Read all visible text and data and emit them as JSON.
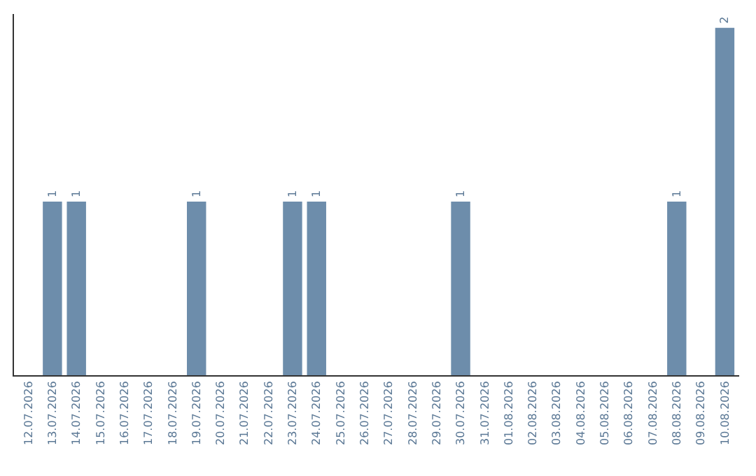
{
  "chart_data": {
    "type": "bar",
    "categories": [
      "12.07.2026",
      "13.07.2026",
      "14.07.2026",
      "15.07.2026",
      "16.07.2026",
      "17.07.2026",
      "18.07.2026",
      "19.07.2026",
      "20.07.2026",
      "21.07.2026",
      "22.07.2026",
      "23.07.2026",
      "24.07.2026",
      "25.07.2026",
      "26.07.2026",
      "27.07.2026",
      "28.07.2026",
      "29.07.2026",
      "30.07.2026",
      "31.07.2026",
      "01.08.2026",
      "02.08.2026",
      "03.08.2026",
      "04.08.2026",
      "05.08.2026",
      "06.08.2026",
      "07.08.2026",
      "08.08.2026",
      "09.08.2026",
      "10.08.2026"
    ],
    "values": [
      0,
      1,
      1,
      0,
      0,
      0,
      0,
      1,
      0,
      0,
      0,
      1,
      1,
      0,
      0,
      0,
      0,
      0,
      1,
      0,
      0,
      0,
      0,
      0,
      0,
      0,
      0,
      1,
      0,
      2
    ],
    "value_labels": [
      null,
      "1",
      "1",
      null,
      null,
      null,
      null,
      "1",
      null,
      null,
      null,
      "1",
      "1",
      null,
      null,
      null,
      null,
      null,
      "1",
      null,
      null,
      null,
      null,
      null,
      null,
      null,
      null,
      "1",
      null,
      "2"
    ],
    "color": "#6d8dab",
    "ylim": [
      0,
      2.08
    ],
    "tick_labels": "x"
  }
}
